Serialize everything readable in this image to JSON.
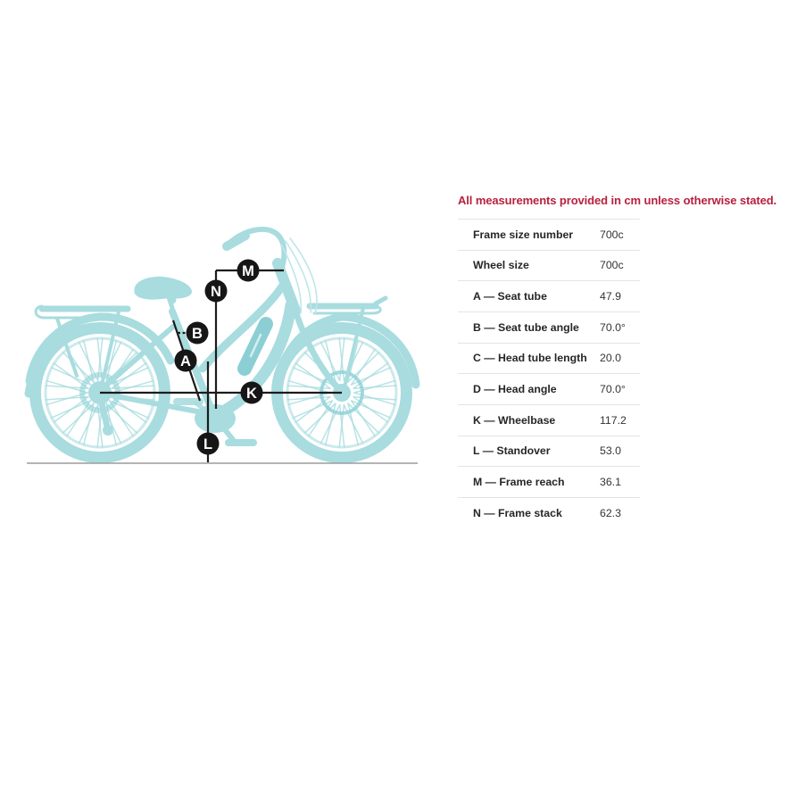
{
  "note": {
    "text": "All measurements provided in cm unless otherwise stated."
  },
  "table": {
    "rows": [
      {
        "label": "Frame size number",
        "value": "700c"
      },
      {
        "label": "Wheel size",
        "value": "700c"
      },
      {
        "label": "A — Seat tube",
        "value": "47.9"
      },
      {
        "label": "B — Seat tube angle",
        "value": "70.0°"
      },
      {
        "label": "C — Head tube length",
        "value": "20.0"
      },
      {
        "label": "D — Head angle",
        "value": "70.0°"
      },
      {
        "label": "K — Wheelbase",
        "value": "117.2"
      },
      {
        "label": "L — Standover",
        "value": "53.0"
      },
      {
        "label": "M — Frame reach",
        "value": "36.1"
      },
      {
        "label": "N — Frame stack",
        "value": "62.3"
      }
    ]
  },
  "diagram": {
    "labels": [
      {
        "letter": "A"
      },
      {
        "letter": "B"
      },
      {
        "letter": "K"
      },
      {
        "letter": "L"
      },
      {
        "letter": "M"
      },
      {
        "letter": "N"
      }
    ],
    "colors": {
      "bike": "#a8dcdf",
      "battery": "#8bcfd4",
      "cable": "#bfe6e8",
      "annotation": "#1c1c1c",
      "ground": "#9c9c9c"
    }
  },
  "style": {
    "accent_red": "#b81f3d",
    "divider": "#e4e4e4",
    "label_text": "#262626",
    "value_text": "#333333"
  }
}
